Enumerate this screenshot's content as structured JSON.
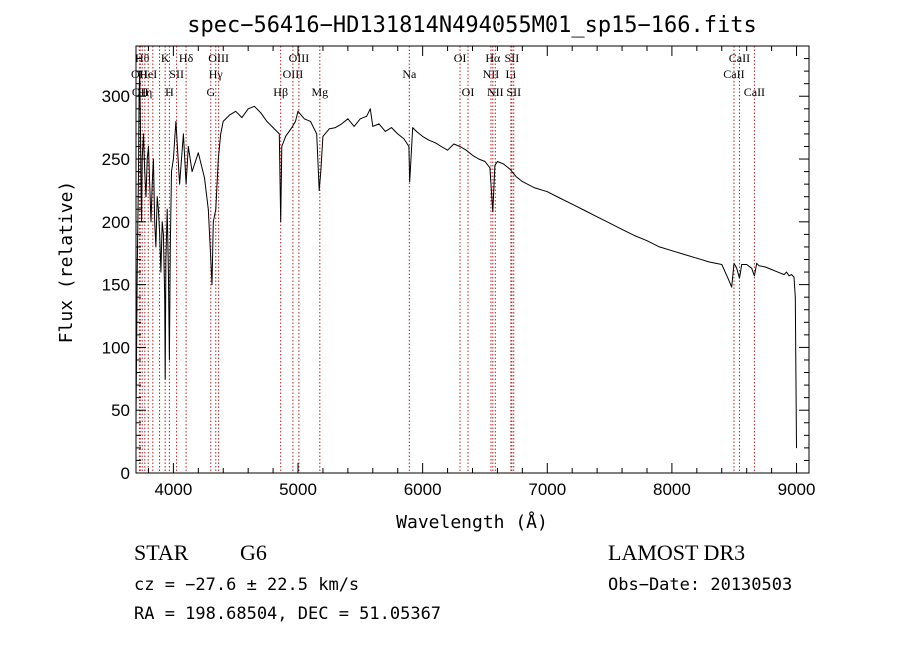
{
  "chart_data": {
    "type": "line",
    "title": "spec−56416−HD131814N494055M01_sp15−166.fits",
    "xlabel": "Wavelength (Å)",
    "ylabel": "Flux (relative)",
    "xlim": [
      3700,
      9100
    ],
    "ylim": [
      0,
      340
    ],
    "xticks": [
      {
        "value": 4000,
        "label": "4000"
      },
      {
        "value": 5000,
        "label": "5000"
      },
      {
        "value": 6000,
        "label": "6000"
      },
      {
        "value": 7000,
        "label": "7000"
      },
      {
        "value": 8000,
        "label": "8000"
      },
      {
        "value": 9000,
        "label": "9000"
      }
    ],
    "yticks": [
      {
        "value": 0,
        "label": "0"
      },
      {
        "value": 50,
        "label": "50"
      },
      {
        "value": 100,
        "label": "100"
      },
      {
        "value": 150,
        "label": "150"
      },
      {
        "value": 200,
        "label": "200"
      },
      {
        "value": 250,
        "label": "250"
      },
      {
        "value": 300,
        "label": "300"
      }
    ],
    "series": [
      {
        "name": "flux",
        "color": "#000000",
        "x": [
          3700,
          3710,
          3720,
          3725,
          3730,
          3735,
          3740,
          3745,
          3750,
          3760,
          3770,
          3780,
          3790,
          3800,
          3810,
          3820,
          3830,
          3840,
          3850,
          3860,
          3870,
          3880,
          3890,
          3900,
          3910,
          3920,
          3930,
          3934,
          3940,
          3950,
          3960,
          3968,
          3975,
          3985,
          4000,
          4020,
          4050,
          4080,
          4102,
          4120,
          4150,
          4200,
          4250,
          4280,
          4300,
          4310,
          4320,
          4340,
          4360,
          4380,
          4400,
          4450,
          4500,
          4550,
          4600,
          4650,
          4700,
          4750,
          4800,
          4850,
          4861,
          4870,
          4900,
          4950,
          4980,
          5000,
          5050,
          5100,
          5150,
          5170,
          5183,
          5200,
          5250,
          5300,
          5350,
          5400,
          5450,
          5500,
          5550,
          5580,
          5600,
          5650,
          5700,
          5750,
          5800,
          5850,
          5890,
          5896,
          5920,
          5950,
          6000,
          6050,
          6100,
          6150,
          6200,
          6250,
          6300,
          6350,
          6400,
          6450,
          6500,
          6540,
          6563,
          6580,
          6600,
          6650,
          6700,
          6750,
          6800,
          6900,
          7000,
          7100,
          7200,
          7300,
          7400,
          7500,
          7600,
          7700,
          7800,
          7900,
          8000,
          8100,
          8200,
          8300,
          8400,
          8450,
          8480,
          8498,
          8520,
          8542,
          8560,
          8600,
          8640,
          8662,
          8680,
          8700,
          8750,
          8800,
          8850,
          8900,
          8920,
          8940,
          8960,
          8980,
          8990,
          9000
        ],
        "y": [
          40,
          160,
          240,
          300,
          320,
          280,
          230,
          200,
          250,
          270,
          240,
          220,
          250,
          260,
          230,
          200,
          230,
          250,
          200,
          180,
          220,
          210,
          190,
          160,
          200,
          190,
          140,
          75,
          170,
          210,
          160,
          90,
          180,
          240,
          250,
          280,
          230,
          270,
          230,
          260,
          240,
          255,
          235,
          210,
          170,
          150,
          200,
          210,
          250,
          270,
          280,
          285,
          288,
          283,
          290,
          292,
          287,
          280,
          275,
          270,
          200,
          260,
          268,
          275,
          280,
          288,
          282,
          280,
          270,
          225,
          240,
          268,
          274,
          275,
          278,
          282,
          276,
          282,
          284,
          290,
          276,
          278,
          272,
          275,
          270,
          266,
          260,
          232,
          275,
          272,
          268,
          265,
          263,
          260,
          257,
          262,
          260,
          257,
          253,
          250,
          248,
          243,
          208,
          245,
          248,
          246,
          242,
          236,
          232,
          227,
          224,
          219,
          214,
          209,
          204,
          199,
          194,
          189,
          185,
          180,
          177,
          174,
          171,
          168,
          166,
          155,
          148,
          167,
          163,
          155,
          166,
          166,
          163,
          157,
          167,
          165,
          164,
          162,
          160,
          158,
          160,
          157,
          158,
          156,
          140,
          20
        ]
      }
    ],
    "lines": [
      {
        "wl": 3727,
        "label": "OII",
        "row": 2
      },
      {
        "wl": 3734,
        "label": "OII",
        "row": 3
      },
      {
        "wl": 3750,
        "label": "Hθ",
        "row": 1
      },
      {
        "wl": 3771,
        "label": "Hη",
        "row": 3
      },
      {
        "wl": 3798,
        "label": "HeI",
        "row": 2
      },
      {
        "wl": 3835,
        "label": "",
        "row": 0
      },
      {
        "wl": 3889,
        "label": "",
        "row": 0
      },
      {
        "wl": 3934,
        "label": "K",
        "row": 1
      },
      {
        "wl": 3968,
        "label": "H",
        "row": 3
      },
      {
        "wl": 4026,
        "label": "SII",
        "row": 2
      },
      {
        "wl": 4102,
        "label": "Hδ",
        "row": 1
      },
      {
        "wl": 4300,
        "label": "G",
        "row": 3
      },
      {
        "wl": 4340,
        "label": "Hγ",
        "row": 2
      },
      {
        "wl": 4363,
        "label": "OIII",
        "row": 1
      },
      {
        "wl": 4861,
        "label": "Hβ",
        "row": 3
      },
      {
        "wl": 4959,
        "label": "OIII",
        "row": 2
      },
      {
        "wl": 5007,
        "label": "OIII",
        "row": 1
      },
      {
        "wl": 5175,
        "label": "Mg",
        "row": 3
      },
      {
        "wl": 5893,
        "label": "Na",
        "row": 2
      },
      {
        "wl": 6300,
        "label": "OI",
        "row": 1
      },
      {
        "wl": 6364,
        "label": "OI",
        "row": 3
      },
      {
        "wl": 6548,
        "label": "NII",
        "row": 2
      },
      {
        "wl": 6563,
        "label": "Hα",
        "row": 1
      },
      {
        "wl": 6583,
        "label": "NII",
        "row": 3
      },
      {
        "wl": 6708,
        "label": "Li",
        "row": 2
      },
      {
        "wl": 6716,
        "label": "SII",
        "row": 1
      },
      {
        "wl": 6731,
        "label": "SII",
        "row": 3
      },
      {
        "wl": 8498,
        "label": "CaII",
        "row": 2
      },
      {
        "wl": 8542,
        "label": "CaII",
        "row": 1
      },
      {
        "wl": 8662,
        "label": "CaII",
        "row": 3
      }
    ]
  },
  "info": {
    "object_class": "STAR",
    "subclass": "G6",
    "survey": "LAMOST DR3",
    "redshift": "cz = −27.6 ± 22.5 km/s",
    "obs_date": "Obs−Date: 20130503",
    "coords": "RA = 198.68504, DEC =  51.05367"
  },
  "colors": {
    "line_marker": "#b22222",
    "spectrum": "#000000",
    "axes": "#000000"
  }
}
